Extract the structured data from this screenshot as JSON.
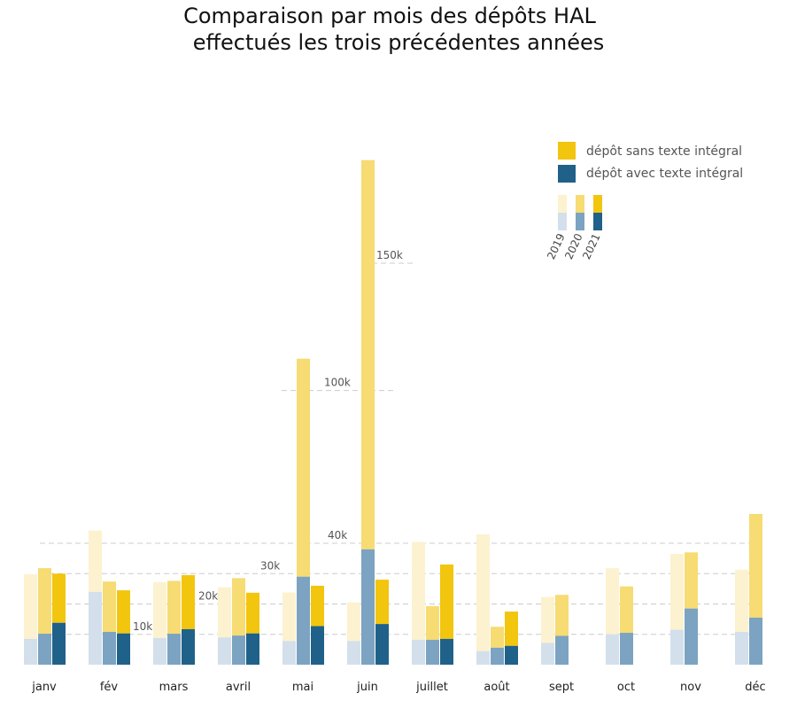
{
  "chart_data": {
    "type": "bar",
    "title": [
      "Comparaison par mois des dépôts HAL",
      "effectués les trois précédentes années"
    ],
    "categories": [
      "janv",
      "fév",
      "mars",
      "avril",
      "mai",
      "juin",
      "juillet",
      "août",
      "sept",
      "oct",
      "nov",
      "déc"
    ],
    "years": [
      "2019",
      "2020",
      "2021"
    ],
    "stack_parts": [
      "dépôt sans texte intégral",
      "dépôt avec texte intégral"
    ],
    "y_ticks": [
      "10k",
      "20k",
      "30k",
      "40k",
      "100k",
      "150k"
    ],
    "series": {
      "2019": {
        "avec": [
          8500,
          24000,
          8800,
          9000,
          7800,
          7800,
          8200,
          4500,
          7200,
          10000,
          11500,
          10800
        ],
        "total": [
          29800,
          45000,
          27200,
          25500,
          23800,
          20500,
          40500,
          43500,
          22300,
          31800,
          36500,
          31300
        ]
      },
      "2020": {
        "avec": [
          10200,
          10800,
          10200,
          9600,
          29000,
          38000,
          8200,
          5600,
          9500,
          10500,
          18500,
          15500
        ],
        "total": [
          31800,
          27400,
          27600,
          28500,
          112500,
          190500,
          19300,
          12500,
          23000,
          25800,
          37000,
          null
        ]
      },
      "2021": {
        "avec": [
          13800,
          10300,
          11700,
          10300,
          12700,
          13400,
          8500,
          6200,
          null,
          null,
          null,
          null
        ],
        "total": [
          30000,
          24500,
          29500,
          23700,
          26000,
          28000,
          33000,
          17500,
          null,
          null,
          null,
          null
        ]
      }
    },
    "final_bar_total": 51500,
    "legend": {
      "sans_label": "dépôt sans texte intégral",
      "avec_label": "dépôt avec texte intégral"
    },
    "colors": {
      "sans": [
        "#fcf2cf",
        "#f7db73",
        "#f2c50f"
      ],
      "avec": [
        "#d3e0eb",
        "#7ca3c1",
        "#1f6189"
      ],
      "grid": "#cccccc"
    },
    "grid": true
  }
}
